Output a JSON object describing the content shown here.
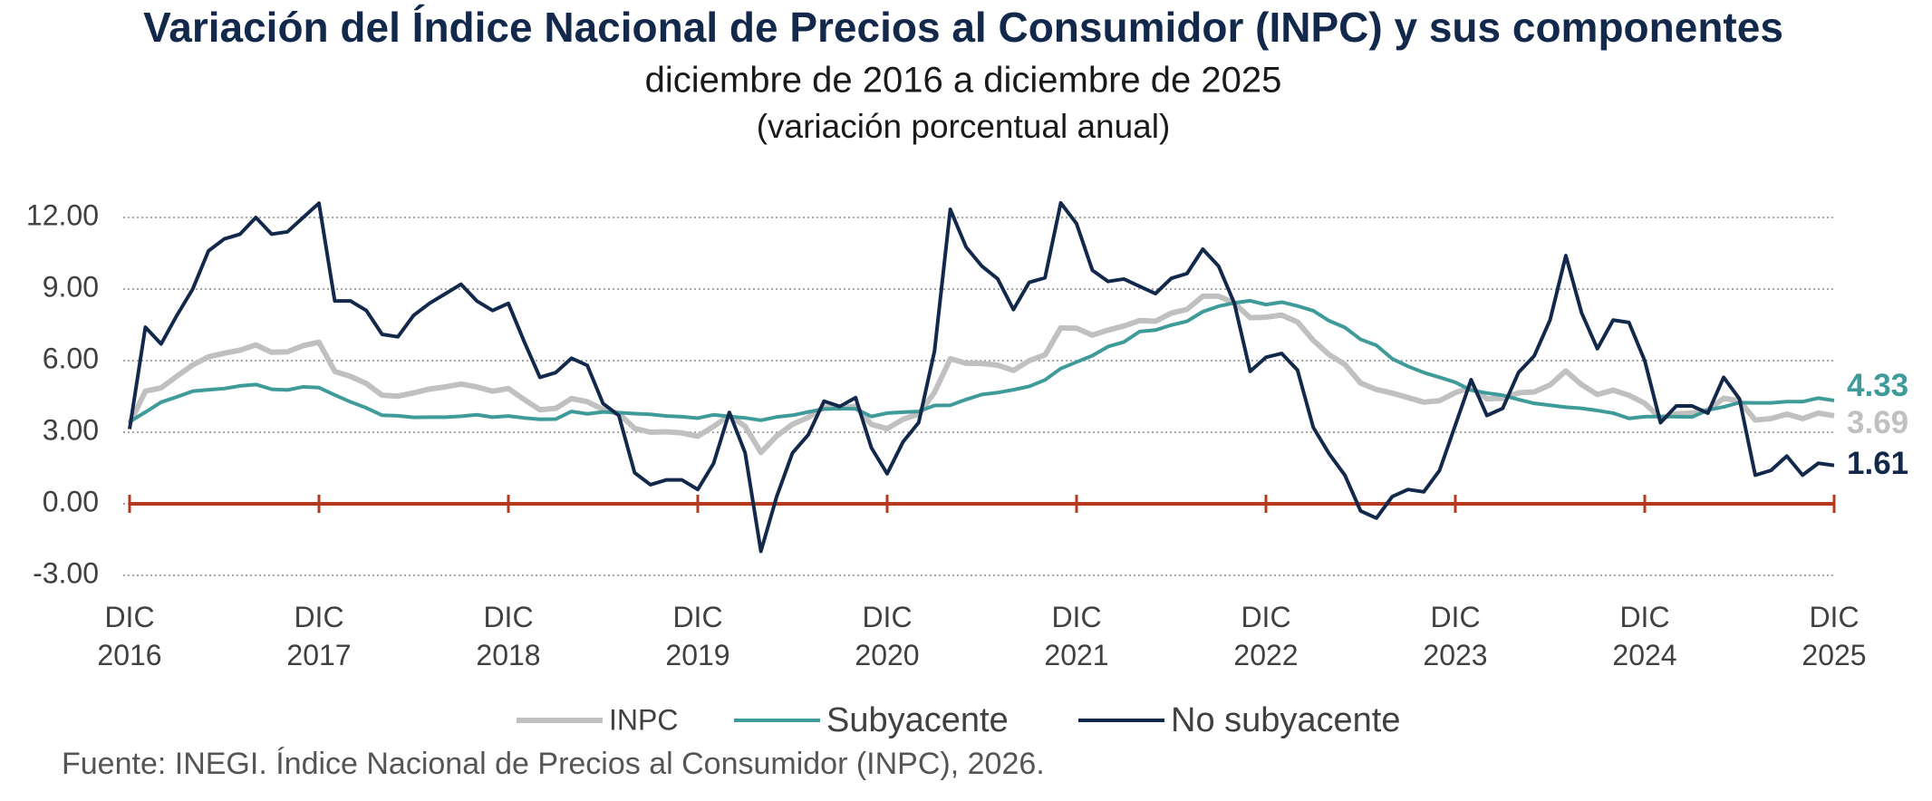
{
  "chart_data": {
    "type": "line",
    "title": "Variación del Índice Nacional de Precios al Consumidor (INPC) y sus componentes",
    "subtitle": "diciembre de 2016 a diciembre de 2025",
    "unit_note": "(variación porcentual anual)",
    "source": "Fuente: INEGI. Índice Nacional de Precios al Consumidor (INPC), 2026.",
    "categories": [
      "DIC\n2016",
      null,
      null,
      null,
      null,
      null,
      null,
      null,
      null,
      null,
      null,
      null,
      "DIC\n2017",
      null,
      null,
      null,
      null,
      null,
      null,
      null,
      null,
      null,
      null,
      null,
      "DIC\n2018",
      null,
      null,
      null,
      null,
      null,
      null,
      null,
      null,
      null,
      null,
      null,
      "DIC\n2019",
      null,
      null,
      null,
      null,
      null,
      null,
      null,
      null,
      null,
      null,
      null,
      "DIC\n2020",
      null,
      null,
      null,
      null,
      null,
      null,
      null,
      null,
      null,
      null,
      null,
      "DIC\n2021",
      null,
      null,
      null,
      null,
      null,
      null,
      null,
      null,
      null,
      null,
      null,
      "DIC\n2022",
      null,
      null,
      null,
      null,
      null,
      null,
      null,
      null,
      null,
      null,
      null,
      "DIC\n2023",
      null,
      null,
      null,
      null,
      null,
      null,
      null,
      null,
      null,
      null,
      null,
      "DIC\n2024",
      null,
      null,
      null,
      null,
      null,
      null,
      null,
      null,
      null,
      null,
      null,
      "DIC\n2025"
    ],
    "series": [
      {
        "name": "INPC",
        "color": "#c0c0c0",
        "values": [
          3.36,
          4.72,
          4.86,
          5.35,
          5.82,
          6.16,
          6.31,
          6.44,
          6.66,
          6.35,
          6.37,
          6.63,
          6.77,
          5.55,
          5.34,
          5.04,
          4.55,
          4.51,
          4.65,
          4.81,
          4.9,
          5.02,
          4.9,
          4.72,
          4.83,
          4.37,
          3.94,
          4.0,
          4.41,
          4.28,
          3.95,
          3.78,
          3.16,
          3.0,
          3.02,
          2.97,
          2.83,
          3.24,
          3.7,
          3.25,
          2.15,
          2.84,
          3.33,
          3.62,
          4.05,
          4.01,
          4.09,
          3.33,
          3.15,
          3.54,
          3.76,
          4.67,
          6.08,
          5.89,
          5.88,
          5.81,
          5.59,
          6.0,
          6.24,
          7.37,
          7.36,
          7.07,
          7.28,
          7.45,
          7.68,
          7.65,
          7.99,
          8.15,
          8.7,
          8.7,
          8.41,
          7.8,
          7.82,
          7.91,
          7.62,
          6.85,
          6.25,
          5.84,
          5.06,
          4.79,
          4.64,
          4.45,
          4.26,
          4.32,
          4.66,
          4.88,
          4.4,
          4.42,
          4.65,
          4.69,
          4.98,
          5.57,
          4.99,
          4.58,
          4.76,
          4.55,
          4.21,
          3.59,
          3.77,
          3.8,
          3.93,
          4.42,
          4.32,
          3.51,
          3.57,
          3.76,
          3.57,
          3.8,
          3.69
        ]
      },
      {
        "name": "Subyacente",
        "color": "#3f9a9a",
        "values": [
          3.44,
          3.84,
          4.26,
          4.48,
          4.72,
          4.78,
          4.83,
          4.94,
          5.0,
          4.8,
          4.77,
          4.9,
          4.87,
          4.56,
          4.27,
          4.02,
          3.71,
          3.69,
          3.62,
          3.63,
          3.63,
          3.67,
          3.73,
          3.63,
          3.68,
          3.6,
          3.54,
          3.55,
          3.87,
          3.77,
          3.85,
          3.82,
          3.78,
          3.75,
          3.68,
          3.65,
          3.59,
          3.73,
          3.66,
          3.6,
          3.5,
          3.64,
          3.71,
          3.85,
          3.97,
          3.99,
          3.98,
          3.66,
          3.8,
          3.84,
          3.87,
          4.12,
          4.13,
          4.37,
          4.58,
          4.66,
          4.78,
          4.92,
          5.19,
          5.67,
          5.94,
          6.21,
          6.59,
          6.78,
          7.22,
          7.28,
          7.49,
          7.65,
          8.05,
          8.28,
          8.42,
          8.51,
          8.35,
          8.45,
          8.29,
          8.09,
          7.67,
          7.39,
          6.89,
          6.64,
          6.08,
          5.76,
          5.5,
          5.3,
          5.09,
          4.76,
          4.64,
          4.55,
          4.37,
          4.21,
          4.13,
          4.05,
          4.0,
          3.91,
          3.8,
          3.58,
          3.65,
          3.66,
          3.65,
          3.64,
          3.93,
          4.06,
          4.24,
          4.23,
          4.23,
          4.28,
          4.28,
          4.43,
          4.33
        ]
      },
      {
        "name": "No subyacente",
        "color": "#13294b",
        "values": [
          3.13,
          7.4,
          6.7,
          7.9,
          9.0,
          10.6,
          11.1,
          11.3,
          12.0,
          11.3,
          11.4,
          12.0,
          12.6,
          8.5,
          8.5,
          8.1,
          7.1,
          7.0,
          7.9,
          8.4,
          8.8,
          9.2,
          8.5,
          8.1,
          8.4,
          6.8,
          5.3,
          5.5,
          6.1,
          5.8,
          4.2,
          3.7,
          1.3,
          0.8,
          1.0,
          1.0,
          0.6,
          1.69,
          3.83,
          2.14,
          -1.99,
          0.3,
          2.13,
          2.89,
          4.3,
          4.08,
          4.45,
          2.35,
          1.26,
          2.59,
          3.41,
          6.4,
          12.34,
          10.76,
          9.96,
          9.43,
          8.14,
          9.28,
          9.47,
          12.61,
          11.74,
          9.79,
          9.32,
          9.42,
          9.11,
          8.81,
          9.45,
          9.65,
          10.67,
          9.96,
          8.4,
          5.55,
          6.14,
          6.3,
          5.6,
          3.2,
          2.1,
          1.2,
          -0.3,
          -0.6,
          0.3,
          0.6,
          0.5,
          1.4,
          3.3,
          5.2,
          3.7,
          4.0,
          5.5,
          6.2,
          7.7,
          10.4,
          8.0,
          6.5,
          7.7,
          7.6,
          6.0,
          3.4,
          4.1,
          4.1,
          3.8,
          5.3,
          4.4,
          1.2,
          1.4,
          2.0,
          1.2,
          1.7,
          1.61
        ]
      }
    ],
    "ylim": [
      -3,
      12
    ],
    "yticks": [
      {
        "value": -3,
        "label": "-3.00"
      },
      {
        "value": 0,
        "label": "0.00"
      },
      {
        "value": 3,
        "label": "3.00"
      },
      {
        "value": 6,
        "label": "6.00"
      },
      {
        "value": 9,
        "label": "9.00"
      },
      {
        "value": 12,
        "label": "12.00"
      }
    ],
    "grid": true,
    "zero_line_color": "#b5391f",
    "legend": "bottom"
  }
}
